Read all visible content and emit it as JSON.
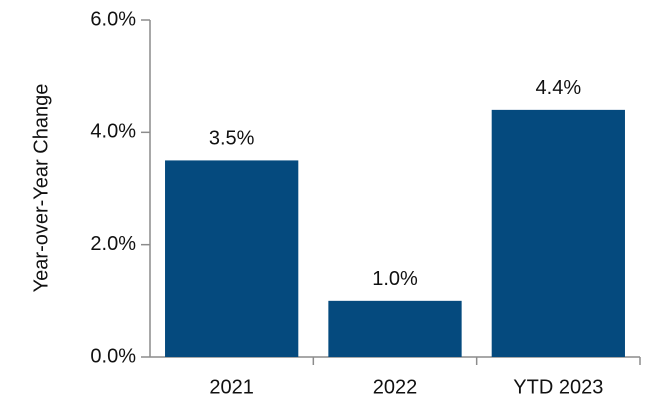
{
  "chart_data": {
    "type": "bar",
    "y_label": "Year-over-Year Change",
    "categories": [
      "2021",
      "2022",
      "YTD 2023"
    ],
    "values": [
      3.5,
      1.0,
      4.4
    ],
    "value_labels": [
      "3.5%",
      "1.0%",
      "4.4%"
    ],
    "color": "#054a7e",
    "ylim": [
      0,
      6
    ],
    "yticks": [
      {
        "value": 0,
        "label": "0.0%"
      },
      {
        "value": 2,
        "label": "2.0%"
      },
      {
        "value": 4,
        "label": "4.0%"
      },
      {
        "value": 6,
        "label": "6.0%"
      }
    ],
    "grid": false
  }
}
